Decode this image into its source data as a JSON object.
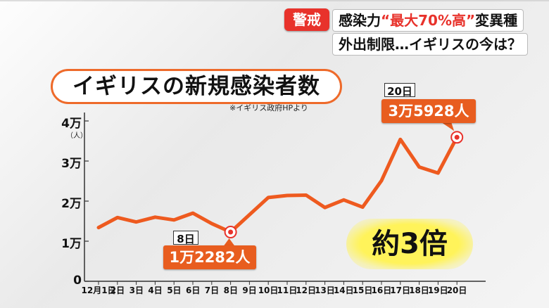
{
  "header": {
    "badge": "警戒",
    "line1_part1": "感染力",
    "line1_highlight": "“最大70%高”",
    "line1_part2": "変異種",
    "line2": "外出制限…イギリスの今は？"
  },
  "chart_title": "イギリスの新規感染者数",
  "source_note": "※イギリス政府HPより",
  "y_unit": "（人）",
  "highlight_text": "約3倍",
  "callouts": {
    "start": {
      "date": "8日",
      "value": "1万2282人"
    },
    "end": {
      "date": "20日",
      "value": "3万5928人"
    }
  },
  "colors": {
    "line": "#ee5a1f",
    "marker": "#e8322b",
    "accent": "#e85d1f"
  },
  "chart_data": {
    "type": "line",
    "title": "イギリスの新規感染者数",
    "xlabel": "",
    "ylabel": "（人）",
    "ylim": [
      0,
      40000
    ],
    "yticks": [
      {
        "value": 0,
        "label": "0"
      },
      {
        "value": 10000,
        "label": "1万"
      },
      {
        "value": 20000,
        "label": "2万"
      },
      {
        "value": 30000,
        "label": "3万"
      },
      {
        "value": 40000,
        "label": "4万"
      }
    ],
    "categories": [
      "12月1日",
      "2日",
      "3日",
      "4日",
      "5日",
      "6日",
      "7日",
      "8日",
      "9日",
      "10日",
      "11日",
      "12日",
      "13日",
      "14日",
      "15日",
      "16日",
      "17日",
      "18日",
      "19日",
      "20日"
    ],
    "values": [
      13400,
      15900,
      14800,
      16000,
      15300,
      17000,
      14400,
      12282,
      16600,
      20900,
      21400,
      21500,
      18400,
      20300,
      18500,
      25100,
      35400,
      28500,
      27000,
      35928
    ],
    "marked_points": [
      7,
      19
    ]
  }
}
